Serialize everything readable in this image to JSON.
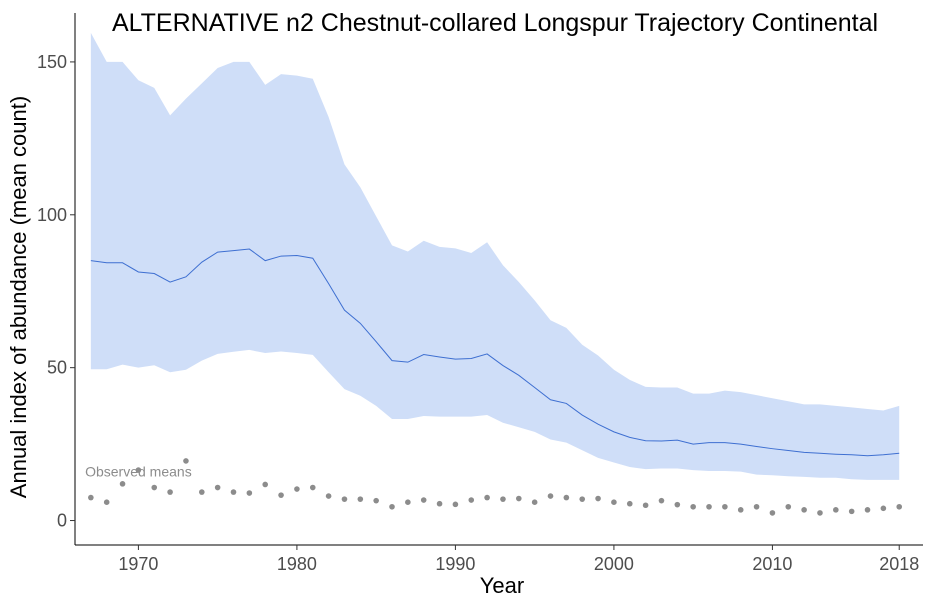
{
  "chart_data": {
    "type": "line",
    "title": "ALTERNATIVE n2 Chestnut-collared Longspur Trajectory Continental",
    "xlabel": "Year",
    "ylabel": "Annual index of abundance (mean count)",
    "xlim": [
      1966,
      2019.5
    ],
    "ylim": [
      -8,
      166
    ],
    "x_ticks": [
      1970,
      1980,
      1990,
      2000,
      2010,
      2018
    ],
    "y_ticks": [
      0,
      50,
      100,
      150
    ],
    "grid": false,
    "legend": "none",
    "colors": {
      "band": "#cfdef8",
      "line": "#3e6fd1",
      "points": "#8c8c8c",
      "axis": "#000000"
    },
    "annotation": {
      "text": "Observed means",
      "x": 1970,
      "y": 16
    },
    "x": [
      1967,
      1968,
      1969,
      1970,
      1971,
      1972,
      1973,
      1974,
      1975,
      1976,
      1977,
      1978,
      1979,
      1980,
      1981,
      1982,
      1983,
      1984,
      1985,
      1986,
      1987,
      1988,
      1989,
      1990,
      1991,
      1992,
      1993,
      1994,
      1995,
      1996,
      1997,
      1998,
      1999,
      2000,
      2001,
      2002,
      2003,
      2004,
      2005,
      2006,
      2007,
      2008,
      2009,
      2010,
      2011,
      2012,
      2013,
      2014,
      2015,
      2016,
      2017,
      2018
    ],
    "series": [
      {
        "name": "",
        "values": [
          85,
          84.3,
          84.3,
          81.3,
          80.8,
          78,
          79.7,
          84.5,
          87.8,
          88.3,
          88.8,
          85,
          86.5,
          86.7,
          85.8,
          77.5,
          68.8,
          64.5,
          58.5,
          52.3,
          51.8,
          54.3,
          53.5,
          52.8,
          53,
          54.5,
          50.7,
          47.5,
          43.5,
          39.5,
          38.3,
          34.5,
          31.5,
          29,
          27.2,
          26.1,
          26,
          26.3,
          25,
          25.5,
          25.5,
          25,
          24.2,
          23.5,
          22.9,
          22.3,
          22,
          21.7,
          21.5,
          21.2,
          21.5,
          22
        ],
        "lower": [
          49.5,
          49.5,
          51,
          50,
          50.8,
          48.5,
          49.3,
          52.3,
          54.5,
          55.2,
          55.8,
          54.8,
          55.3,
          54.8,
          54.2,
          48.5,
          43,
          40.8,
          37.5,
          33.2,
          33.2,
          34.2,
          34,
          34,
          34,
          34.5,
          32,
          30.5,
          29,
          26.5,
          25.5,
          23,
          20.5,
          19,
          17.5,
          16.8,
          17,
          17,
          16.5,
          16.2,
          16.2,
          16,
          15,
          14.8,
          14.5,
          14.3,
          14,
          14,
          13.5,
          13.3,
          13.3,
          13.3
        ],
        "upper": [
          159.5,
          150,
          150,
          144,
          141.5,
          132.5,
          138,
          143,
          148,
          150,
          150,
          142.5,
          146,
          145.5,
          144.5,
          132,
          116.5,
          109,
          99.5,
          90,
          88,
          91.5,
          89.5,
          89,
          87.5,
          91,
          83.5,
          78,
          72,
          65.5,
          63,
          57.5,
          54,
          49.3,
          46,
          43.7,
          43.5,
          43.5,
          41.5,
          41.5,
          42.5,
          42,
          41,
          40,
          39,
          38,
          38,
          37.5,
          37,
          36.5,
          36,
          37.5
        ]
      }
    ],
    "observed_means": {
      "x": [
        1967,
        1968,
        1969,
        1970,
        1971,
        1972,
        1973,
        1974,
        1975,
        1976,
        1977,
        1978,
        1979,
        1980,
        1981,
        1982,
        1983,
        1984,
        1985,
        1986,
        1987,
        1988,
        1989,
        1990,
        1991,
        1992,
        1993,
        1994,
        1995,
        1996,
        1997,
        1998,
        1999,
        2000,
        2001,
        2002,
        2003,
        2004,
        2005,
        2006,
        2007,
        2008,
        2009,
        2010,
        2011,
        2012,
        2013,
        2014,
        2015,
        2016,
        2017,
        2018
      ],
      "y": [
        7.5,
        6,
        12,
        16.5,
        10.8,
        9.3,
        19.5,
        9.3,
        10.8,
        9.3,
        9,
        11.8,
        8.3,
        10.3,
        10.8,
        8,
        7,
        7,
        6.5,
        4.5,
        6,
        6.7,
        5.5,
        5.3,
        6.7,
        7.5,
        7,
        7.2,
        6,
        8,
        7.5,
        7,
        7.2,
        6,
        5.5,
        5,
        6.5,
        5.2,
        4.5,
        4.5,
        4.5,
        3.5,
        4.5,
        2.5,
        4.5,
        3.5,
        2.5,
        3.5,
        3,
        3.5,
        4,
        4.5
      ]
    }
  }
}
